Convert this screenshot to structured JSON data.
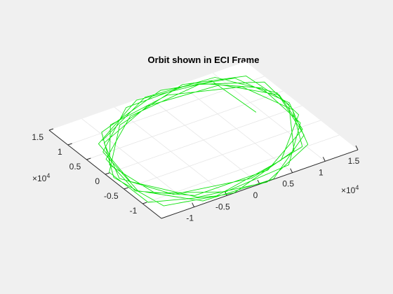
{
  "chart_data": {
    "type": "line",
    "projection": "3d",
    "title": "Orbit shown in ECI Frame",
    "x_ticks": [
      "-1",
      "-0.5",
      "0",
      "0.5",
      "1",
      "1.5"
    ],
    "y_ticks": [
      "-1",
      "-0.5",
      "0",
      "0.5",
      "1",
      "1.5"
    ],
    "x_multiplier": {
      "base": "×10",
      "exp": "4"
    },
    "y_multiplier": {
      "base": "×10",
      "exp": "4"
    },
    "xlim": [
      -15000,
      15000
    ],
    "ylim": [
      -15000,
      15000
    ],
    "grid": true,
    "series": [
      {
        "color": "#00e000",
        "x": [
          9800,
          8600,
          -2400,
          -12200,
          -13400,
          -7800,
          1800,
          10900,
          13900,
          11000,
          1500,
          -9900,
          -14100,
          -12300,
          -3300,
          8100,
          13200,
          12400,
          4900,
          -6500,
          -13600,
          -13600,
          -6100,
          5000,
          12700,
          13800,
          7300,
          -3800,
          -12200,
          -13900,
          -8800,
          2000,
          11400,
          14200,
          9900,
          -600,
          -10600,
          -14400,
          -11200,
          -700,
          9600,
          14100,
          12000,
          2600,
          -8100,
          -14000,
          -12900,
          -4700,
          6200,
          13300,
          13600,
          6400,
          -4500,
          -12900,
          -13900,
          -7800,
          2900,
          11800,
          14000,
          9000,
          -1100,
          -11000
        ],
        "y": [
          3100,
          12800,
          13700,
          6700,
          -3900,
          -12100,
          -13800,
          -8800,
          1400,
          10900,
          14100,
          9900,
          -700,
          -10900,
          -14000,
          -10000,
          300,
          10300,
          14200,
          11000,
          1400,
          -9000,
          -14100,
          -12000,
          -3200,
          7900,
          13900,
          12900,
          4700,
          -6100,
          -13100,
          -13700,
          -6500,
          4600,
          12800,
          13900,
          8000,
          -2700,
          -11600,
          -14000,
          -9600,
          900,
          10700,
          14200,
          10700,
          600,
          -9600,
          -14100,
          -11900,
          -2600,
          8200,
          13900,
          12800,
          4300,
          -6800,
          -13500,
          -13600,
          -6200,
          4800,
          12700,
          13700,
          7800
        ],
        "z": [
          -1200,
          500,
          1600,
          1400,
          200,
          -1200,
          -1800,
          -1100,
          400,
          1500,
          1500,
          400,
          -1000,
          -1800,
          -1300,
          100,
          1400,
          1700,
          800,
          -800,
          -1700,
          -1500,
          -200,
          1200,
          1800,
          1000,
          -600,
          -1700,
          -1600,
          -400,
          1000,
          1800,
          1200,
          -300,
          -1600,
          -1700,
          -700,
          800,
          1700,
          1400,
          -100,
          -1400,
          -1800,
          -900,
          700,
          1700,
          1500,
          100,
          -1300,
          -1800,
          -1000,
          500,
          1600,
          1600,
          300,
          -1100,
          -1800,
          -1200,
          300,
          1500,
          1600,
          500
        ]
      }
    ]
  }
}
